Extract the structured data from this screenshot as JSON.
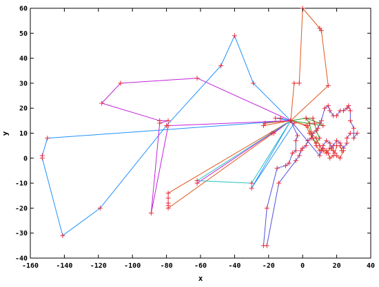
{
  "chart_data": {
    "type": "line",
    "title": "",
    "xlabel": "x",
    "ylabel": "y",
    "xlim": [
      -160,
      40
    ],
    "ylim": [
      -40,
      60
    ],
    "grid": false,
    "legend": "none",
    "x_ticks": [
      "-160",
      "-140",
      "-120",
      "-100",
      "-80",
      "-60",
      "-40",
      "-20",
      "0",
      "20",
      "40"
    ],
    "y_ticks": [
      "-40",
      "-30",
      "-20",
      "-10",
      "0",
      "10",
      "20",
      "30",
      "40",
      "50",
      "60"
    ],
    "marker_color": "#e8293a",
    "series": [
      {
        "color": "#1e90ff",
        "points": [
          [
            -7,
            15
          ],
          [
            -29,
            30
          ],
          [
            -40,
            49
          ],
          [
            -48,
            37
          ],
          [
            -80,
            13
          ],
          [
            -119,
            -20
          ],
          [
            -141,
            -31
          ],
          [
            -153,
            0
          ],
          [
            -153,
            1
          ],
          [
            -150,
            8
          ],
          [
            -7,
            15
          ],
          [
            -16,
            16
          ],
          [
            -13,
            16
          ],
          [
            -7,
            15
          ],
          [
            -30,
            -12
          ],
          [
            -5,
            14
          ]
        ]
      },
      {
        "color": "#e0561a",
        "points": [
          [
            -7,
            15
          ],
          [
            -5,
            30
          ],
          [
            -2,
            30
          ],
          [
            0,
            60
          ],
          [
            10,
            52
          ],
          [
            11,
            51
          ],
          [
            15,
            29
          ],
          [
            -7,
            15
          ],
          [
            -23,
            13
          ],
          [
            -22,
            14
          ],
          [
            -7,
            15
          ],
          [
            -79,
            -14
          ],
          [
            -79,
            -16
          ],
          [
            -79,
            -18
          ],
          [
            -79,
            -19
          ],
          [
            -79,
            -20
          ],
          [
            -7,
            15
          ],
          [
            3,
            13
          ],
          [
            5,
            10
          ],
          [
            8,
            8
          ],
          [
            10,
            5
          ],
          [
            12,
            3
          ],
          [
            14,
            2
          ],
          [
            16,
            4
          ],
          [
            18,
            3
          ],
          [
            19,
            2
          ],
          [
            20,
            5
          ],
          [
            22,
            5
          ],
          [
            23,
            3
          ],
          [
            24,
            3
          ],
          [
            22,
            0
          ],
          [
            20,
            1
          ],
          [
            18,
            1
          ],
          [
            16,
            0
          ],
          [
            15,
            2
          ],
          [
            14,
            3
          ],
          [
            12,
            4
          ],
          [
            10,
            3
          ],
          [
            8,
            5
          ],
          [
            6,
            8
          ],
          [
            4,
            10
          ],
          [
            2,
            13
          ],
          [
            -7,
            15
          ]
        ]
      },
      {
        "color": "#c020d8",
        "points": [
          [
            -7,
            15
          ],
          [
            -62,
            32
          ],
          [
            -107,
            30
          ],
          [
            -118,
            22
          ],
          [
            -84,
            15
          ],
          [
            -79,
            15
          ],
          [
            -84,
            14
          ],
          [
            -89,
            -22
          ],
          [
            -79,
            13
          ],
          [
            -7,
            15
          ],
          [
            -18,
            10
          ],
          [
            -62,
            -10
          ],
          [
            -7,
            15
          ],
          [
            -17,
            10
          ]
        ]
      },
      {
        "color": "#22c0c0",
        "points": [
          [
            -7,
            15
          ],
          [
            -62,
            -9
          ],
          [
            -30,
            -10
          ],
          [
            -7,
            15
          ]
        ]
      },
      {
        "color": "#22a022",
        "points": [
          [
            -7,
            15
          ],
          [
            2,
            16
          ],
          [
            6,
            16
          ],
          [
            7,
            14
          ],
          [
            8,
            11
          ],
          [
            10,
            8
          ],
          [
            8,
            6
          ],
          [
            6,
            8
          ],
          [
            4,
            14
          ],
          [
            2,
            16
          ],
          [
            10,
            14
          ],
          [
            12,
            13
          ],
          [
            -7,
            15
          ]
        ]
      },
      {
        "color": "#5050dc",
        "points": [
          [
            -7,
            15
          ],
          [
            -3,
            9
          ],
          [
            -4,
            7
          ],
          [
            -4,
            3
          ],
          [
            -6,
            2
          ],
          [
            -8,
            -2
          ],
          [
            -10,
            -3
          ],
          [
            -15,
            -4
          ],
          [
            -21,
            -20
          ],
          [
            -23,
            -35
          ],
          [
            -21,
            -35
          ],
          [
            -14,
            -10
          ],
          [
            -4,
            -1
          ],
          [
            -2,
            1
          ],
          [
            -1,
            3
          ],
          [
            0,
            4
          ],
          [
            2,
            5
          ],
          [
            3,
            7
          ],
          [
            5,
            8
          ],
          [
            6,
            10
          ],
          [
            8,
            11
          ],
          [
            9,
            12
          ],
          [
            11,
            15
          ],
          [
            13,
            20
          ],
          [
            15,
            21
          ],
          [
            16,
            19
          ],
          [
            18,
            17
          ],
          [
            20,
            17
          ],
          [
            22,
            19
          ],
          [
            24,
            19
          ],
          [
            26,
            20
          ],
          [
            27,
            21
          ],
          [
            28,
            19
          ],
          [
            28,
            15
          ],
          [
            30,
            12
          ],
          [
            30,
            8
          ],
          [
            32,
            10
          ],
          [
            28,
            10
          ],
          [
            26,
            8
          ],
          [
            26,
            6
          ],
          [
            24,
            4
          ],
          [
            22,
            6
          ],
          [
            20,
            7
          ],
          [
            18,
            5
          ],
          [
            17,
            4
          ],
          [
            16,
            6
          ],
          [
            14,
            7
          ],
          [
            12,
            5
          ],
          [
            11,
            3
          ],
          [
            10,
            1
          ],
          [
            -7,
            15
          ]
        ]
      }
    ]
  }
}
